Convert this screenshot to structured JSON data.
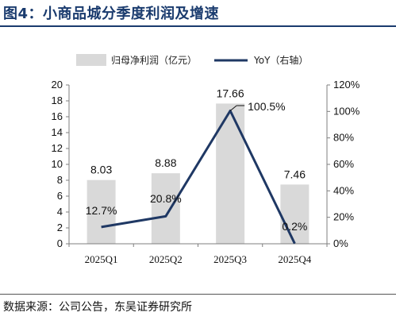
{
  "title": "图4：小商品城分季度利润及增速",
  "source": "数据来源：公司公告，东吴证券研究所",
  "colors": {
    "bar": "#d9d9d9",
    "line": "#1f3864",
    "title": "#1a3b6e"
  },
  "chart_data": {
    "type": "bar",
    "categories": [
      "2025Q1",
      "2025Q2",
      "2025Q3",
      "2025Q4"
    ],
    "series": [
      {
        "name": "归母净利润（亿元）",
        "type": "bar",
        "axis": "left",
        "values": [
          8.03,
          8.88,
          17.66,
          7.46
        ],
        "labels": [
          "8.03",
          "8.88",
          "17.66",
          "7.46"
        ]
      },
      {
        "name": "YoY（右轴）",
        "type": "line",
        "axis": "right",
        "values": [
          12.7,
          20.8,
          100.5,
          0.2
        ],
        "labels": [
          "12.7%",
          "20.8%",
          "100.5%",
          "0.2%"
        ]
      }
    ],
    "ylim": [
      0,
      20
    ],
    "yticks": [
      "0",
      "2",
      "4",
      "6",
      "8",
      "10",
      "12",
      "14",
      "16",
      "18",
      "20"
    ],
    "y2lim": [
      0,
      120
    ],
    "y2ticks": [
      "0%",
      "20%",
      "40%",
      "60%",
      "80%",
      "100%",
      "120%"
    ],
    "legend": "top",
    "grid": false
  }
}
